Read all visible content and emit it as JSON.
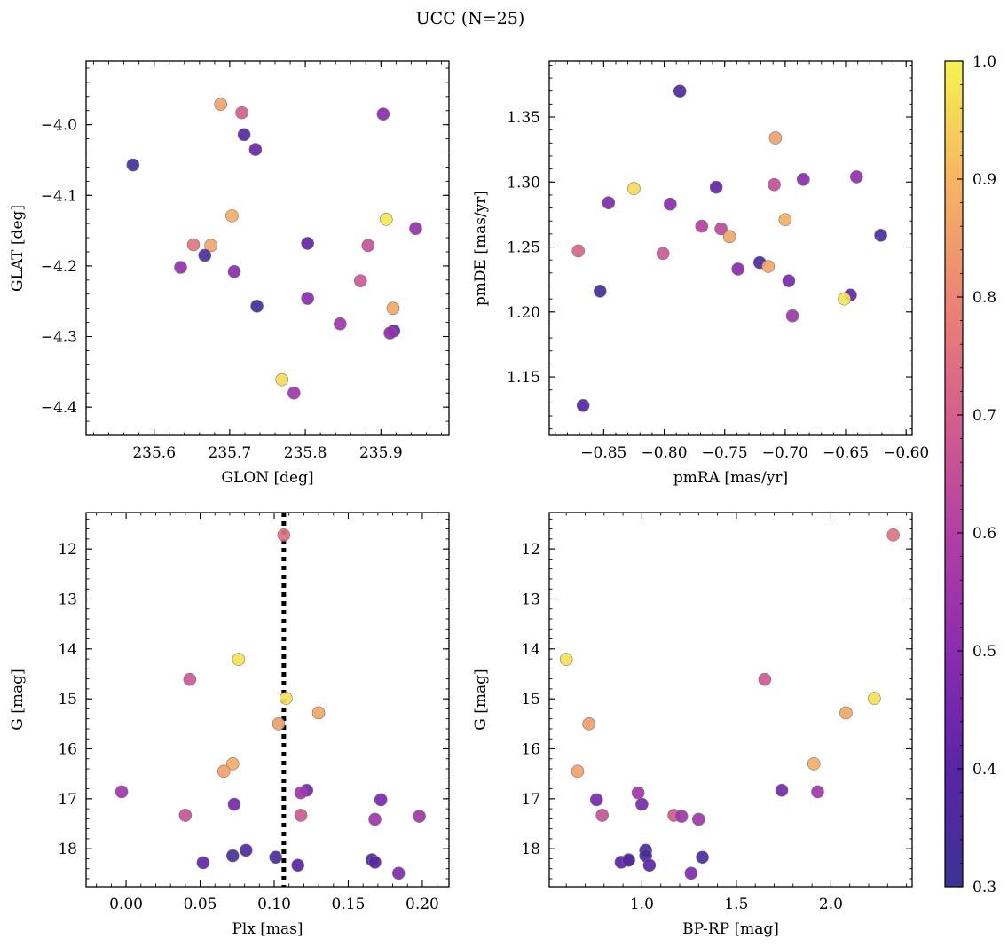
{
  "figure": {
    "title": "UCC (N=25)"
  },
  "chart_data": [
    {
      "type": "scatter",
      "xlabel": "GLON [deg]",
      "ylabel": "GLAT [deg]",
      "xlim": [
        235.51,
        235.99
      ],
      "ylim": [
        -4.44,
        -3.91
      ],
      "y_inverted": false,
      "xticks": [
        235.6,
        235.7,
        235.8,
        235.9
      ],
      "xtick_labels": [
        "235.6",
        "235.7",
        "235.8",
        "235.9"
      ],
      "yticks": [
        -4.0,
        -4.1,
        -4.2,
        -4.3,
        -4.4
      ],
      "ytick_labels": [
        "−4.0",
        "−4.1",
        "−4.2",
        "−4.3",
        "−4.4"
      ],
      "points": [
        {
          "x": 235.688,
          "y": -3.971,
          "c": 0.86
        },
        {
          "x": 235.716,
          "y": -3.983,
          "c": 0.7
        },
        {
          "x": 235.719,
          "y": -4.014,
          "c": 0.37
        },
        {
          "x": 235.903,
          "y": -3.985,
          "c": 0.5
        },
        {
          "x": 235.734,
          "y": -4.035,
          "c": 0.43
        },
        {
          "x": 235.572,
          "y": -4.057,
          "c": 0.32
        },
        {
          "x": 235.703,
          "y": -4.129,
          "c": 0.88
        },
        {
          "x": 235.907,
          "y": -4.134,
          "c": 0.98
        },
        {
          "x": 235.946,
          "y": -4.147,
          "c": 0.53
        },
        {
          "x": 235.652,
          "y": -4.17,
          "c": 0.76
        },
        {
          "x": 235.675,
          "y": -4.171,
          "c": 0.87
        },
        {
          "x": 235.803,
          "y": -4.168,
          "c": 0.42
        },
        {
          "x": 235.883,
          "y": -4.171,
          "c": 0.66
        },
        {
          "x": 235.667,
          "y": -4.185,
          "c": 0.35
        },
        {
          "x": 235.635,
          "y": -4.202,
          "c": 0.52
        },
        {
          "x": 235.706,
          "y": -4.208,
          "c": 0.5
        },
        {
          "x": 235.873,
          "y": -4.221,
          "c": 0.68
        },
        {
          "x": 235.803,
          "y": -4.246,
          "c": 0.5
        },
        {
          "x": 235.736,
          "y": -4.257,
          "c": 0.34
        },
        {
          "x": 235.916,
          "y": -4.26,
          "c": 0.87
        },
        {
          "x": 235.846,
          "y": -4.282,
          "c": 0.55
        },
        {
          "x": 235.917,
          "y": -4.292,
          "c": 0.43
        },
        {
          "x": 235.912,
          "y": -4.295,
          "c": 0.52
        },
        {
          "x": 235.769,
          "y": -4.361,
          "c": 0.96
        },
        {
          "x": 235.785,
          "y": -4.38,
          "c": 0.55
        }
      ]
    },
    {
      "type": "scatter",
      "xlabel": "pmRA [mas/yr]",
      "ylabel": "pmDE [mas/yr]",
      "xlim": [
        -0.895,
        -0.595
      ],
      "ylim": [
        1.105,
        1.393
      ],
      "y_inverted": false,
      "xticks": [
        -0.85,
        -0.8,
        -0.75,
        -0.7,
        -0.65,
        -0.6
      ],
      "xtick_labels": [
        "−0.85",
        "−0.80",
        "−0.75",
        "−0.70",
        "−0.65",
        "−0.60"
      ],
      "yticks": [
        1.15,
        1.2,
        1.25,
        1.3,
        1.35
      ],
      "ytick_labels": [
        "1.15",
        "1.20",
        "1.25",
        "1.30",
        "1.35"
      ],
      "points": [
        {
          "x": -0.787,
          "y": 1.37,
          "c": 0.36
        },
        {
          "x": -0.708,
          "y": 1.334,
          "c": 0.86
        },
        {
          "x": -0.641,
          "y": 1.304,
          "c": 0.52
        },
        {
          "x": -0.685,
          "y": 1.302,
          "c": 0.5
        },
        {
          "x": -0.709,
          "y": 1.298,
          "c": 0.65
        },
        {
          "x": -0.825,
          "y": 1.295,
          "c": 0.96
        },
        {
          "x": -0.757,
          "y": 1.296,
          "c": 0.42
        },
        {
          "x": -0.846,
          "y": 1.284,
          "c": 0.48
        },
        {
          "x": -0.795,
          "y": 1.283,
          "c": 0.5
        },
        {
          "x": -0.7,
          "y": 1.271,
          "c": 0.88
        },
        {
          "x": -0.769,
          "y": 1.266,
          "c": 0.6
        },
        {
          "x": -0.753,
          "y": 1.264,
          "c": 0.63
        },
        {
          "x": -0.621,
          "y": 1.259,
          "c": 0.35
        },
        {
          "x": -0.746,
          "y": 1.258,
          "c": 0.87
        },
        {
          "x": -0.871,
          "y": 1.247,
          "c": 0.72
        },
        {
          "x": -0.801,
          "y": 1.245,
          "c": 0.68
        },
        {
          "x": -0.721,
          "y": 1.238,
          "c": 0.36
        },
        {
          "x": -0.714,
          "y": 1.235,
          "c": 0.87
        },
        {
          "x": -0.739,
          "y": 1.233,
          "c": 0.5
        },
        {
          "x": -0.697,
          "y": 1.224,
          "c": 0.46
        },
        {
          "x": -0.853,
          "y": 1.216,
          "c": 0.33
        },
        {
          "x": -0.646,
          "y": 1.213,
          "c": 0.42
        },
        {
          "x": -0.651,
          "y": 1.21,
          "c": 0.98
        },
        {
          "x": -0.694,
          "y": 1.197,
          "c": 0.55
        },
        {
          "x": -0.867,
          "y": 1.128,
          "c": 0.38
        }
      ]
    },
    {
      "type": "scatter",
      "xlabel": "Plx [mas]",
      "ylabel": "G [mag]",
      "xlim": [
        -0.027,
        0.218
      ],
      "ylim": [
        11.27,
        18.76
      ],
      "y_inverted": true,
      "xticks": [
        0.0,
        0.05,
        0.1,
        0.15,
        0.2
      ],
      "xtick_labels": [
        "0.00",
        "0.05",
        "0.10",
        "0.15",
        "0.20"
      ],
      "yticks": [
        12,
        13,
        14,
        15,
        16,
        17,
        18
      ],
      "ytick_labels": [
        "12",
        "13",
        "14",
        "15",
        "16",
        "17",
        "18"
      ],
      "vline_x": 0.1065,
      "points": [
        {
          "x": 0.1065,
          "y": 11.72,
          "c": 0.75
        },
        {
          "x": 0.076,
          "y": 14.21,
          "c": 0.97
        },
        {
          "x": 0.043,
          "y": 14.61,
          "c": 0.68
        },
        {
          "x": 0.108,
          "y": 14.99,
          "c": 0.97
        },
        {
          "x": 0.13,
          "y": 15.28,
          "c": 0.87
        },
        {
          "x": 0.103,
          "y": 15.5,
          "c": 0.85
        },
        {
          "x": 0.072,
          "y": 16.3,
          "c": 0.88
        },
        {
          "x": 0.066,
          "y": 16.45,
          "c": 0.86
        },
        {
          "x": -0.003,
          "y": 16.86,
          "c": 0.55
        },
        {
          "x": 0.122,
          "y": 16.83,
          "c": 0.45
        },
        {
          "x": 0.118,
          "y": 16.88,
          "c": 0.55
        },
        {
          "x": 0.172,
          "y": 17.02,
          "c": 0.46
        },
        {
          "x": 0.073,
          "y": 17.11,
          "c": 0.46
        },
        {
          "x": 0.04,
          "y": 17.33,
          "c": 0.66
        },
        {
          "x": 0.118,
          "y": 17.33,
          "c": 0.68
        },
        {
          "x": 0.198,
          "y": 17.35,
          "c": 0.55
        },
        {
          "x": 0.168,
          "y": 17.41,
          "c": 0.55
        },
        {
          "x": 0.081,
          "y": 18.03,
          "c": 0.36
        },
        {
          "x": 0.072,
          "y": 18.14,
          "c": 0.34
        },
        {
          "x": 0.101,
          "y": 18.17,
          "c": 0.35
        },
        {
          "x": 0.166,
          "y": 18.22,
          "c": 0.35
        },
        {
          "x": 0.168,
          "y": 18.27,
          "c": 0.4
        },
        {
          "x": 0.052,
          "y": 18.28,
          "c": 0.42
        },
        {
          "x": 0.116,
          "y": 18.33,
          "c": 0.4
        },
        {
          "x": 0.184,
          "y": 18.49,
          "c": 0.48
        }
      ]
    },
    {
      "type": "scatter",
      "xlabel": "BP-RP [mag]",
      "ylabel": "G [mag]",
      "xlim": [
        0.51,
        2.43
      ],
      "ylim": [
        11.27,
        18.76
      ],
      "y_inverted": true,
      "xticks": [
        1.0,
        1.5,
        2.0
      ],
      "xtick_labels": [
        "1.0",
        "1.5",
        "2.0"
      ],
      "yticks": [
        12,
        13,
        14,
        15,
        16,
        17,
        18
      ],
      "ytick_labels": [
        "12",
        "13",
        "14",
        "15",
        "16",
        "17",
        "18"
      ],
      "points": [
        {
          "x": 2.33,
          "y": 11.72,
          "c": 0.75
        },
        {
          "x": 0.6,
          "y": 14.21,
          "c": 0.97
        },
        {
          "x": 1.65,
          "y": 14.61,
          "c": 0.68
        },
        {
          "x": 2.23,
          "y": 14.99,
          "c": 0.97
        },
        {
          "x": 2.08,
          "y": 15.28,
          "c": 0.87
        },
        {
          "x": 0.72,
          "y": 15.5,
          "c": 0.85
        },
        {
          "x": 1.91,
          "y": 16.3,
          "c": 0.88
        },
        {
          "x": 0.66,
          "y": 16.45,
          "c": 0.86
        },
        {
          "x": 1.74,
          "y": 16.83,
          "c": 0.45
        },
        {
          "x": 1.93,
          "y": 16.86,
          "c": 0.55
        },
        {
          "x": 0.98,
          "y": 16.88,
          "c": 0.55
        },
        {
          "x": 0.76,
          "y": 17.02,
          "c": 0.46
        },
        {
          "x": 1.0,
          "y": 17.11,
          "c": 0.46
        },
        {
          "x": 0.79,
          "y": 17.33,
          "c": 0.66
        },
        {
          "x": 1.17,
          "y": 17.33,
          "c": 0.68
        },
        {
          "x": 1.21,
          "y": 17.35,
          "c": 0.55
        },
        {
          "x": 1.3,
          "y": 17.41,
          "c": 0.55
        },
        {
          "x": 1.02,
          "y": 18.03,
          "c": 0.36
        },
        {
          "x": 1.02,
          "y": 18.14,
          "c": 0.34
        },
        {
          "x": 1.32,
          "y": 18.17,
          "c": 0.35
        },
        {
          "x": 0.93,
          "y": 18.22,
          "c": 0.35
        },
        {
          "x": 0.89,
          "y": 18.27,
          "c": 0.4
        },
        {
          "x": 1.04,
          "y": 18.33,
          "c": 0.4
        },
        {
          "x": 1.26,
          "y": 18.49,
          "c": 0.48
        },
        {
          "x": 0.93,
          "y": 18.23,
          "c": 0.38
        }
      ]
    }
  ],
  "colorbar": {
    "colormap": "plasma",
    "vmin": 0.3,
    "vmax": 1.0,
    "ticks": [
      0.3,
      0.4,
      0.5,
      0.6,
      0.7,
      0.8,
      0.9,
      1.0
    ],
    "tick_labels": [
      "0.3",
      "0.4",
      "0.5",
      "0.6",
      "0.7",
      "0.8",
      "0.9",
      "1.0"
    ]
  }
}
